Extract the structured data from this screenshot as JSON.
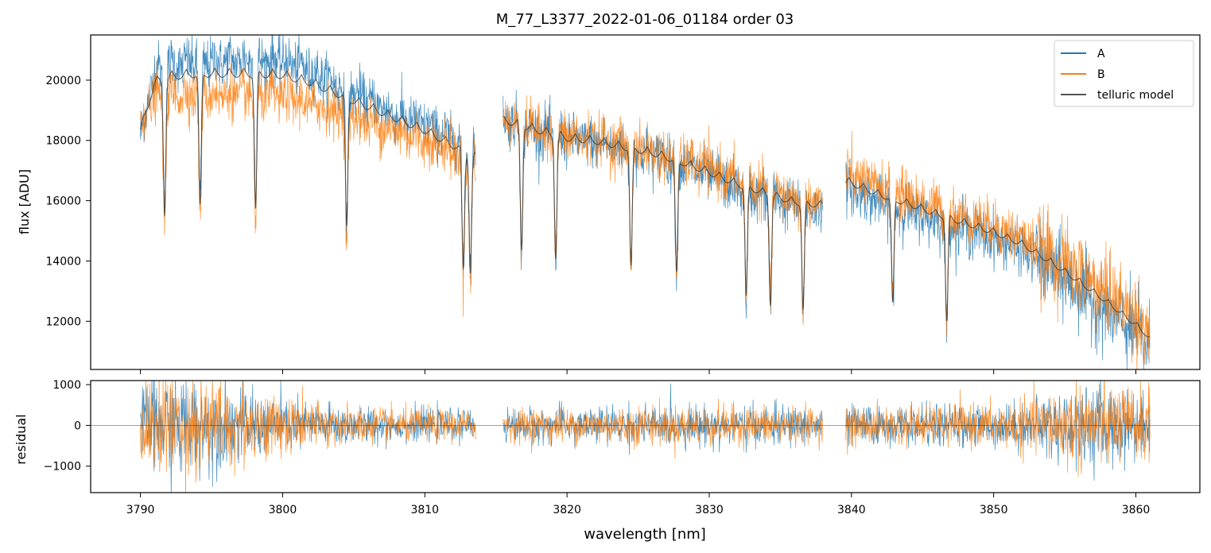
{
  "chart_data": [
    {
      "type": "line",
      "title": "M_77_L3377_2022-01-06_01184  order 03",
      "xlabel": "",
      "ylabel": "flux [ADU]",
      "xlim": [
        3786.5,
        3864.5
      ],
      "ylim": [
        10400,
        21500
      ],
      "yticks": [
        12000,
        14000,
        16000,
        18000,
        20000
      ],
      "grid": false,
      "legend": "top-right",
      "segments": [
        [
          3790.0,
          3813.6
        ],
        [
          3815.5,
          3838.0
        ],
        [
          3839.6,
          3861.0
        ]
      ],
      "series": [
        {
          "name": "A",
          "color": "#1f77b4",
          "x": [
            3790,
            3791,
            3792,
            3794,
            3796,
            3798,
            3800,
            3802,
            3804,
            3806,
            3808,
            3810,
            3812,
            3813.5,
            3815.6,
            3818,
            3820,
            3822,
            3824,
            3826,
            3828,
            3830,
            3832,
            3834,
            3836,
            3837.9,
            3839.7,
            3842,
            3844,
            3846,
            3848,
            3850,
            3852,
            3854,
            3856,
            3858,
            3860,
            3861
          ],
          "values": [
            18300,
            20500,
            20700,
            20800,
            20850,
            20900,
            20850,
            20500,
            20000,
            19500,
            19000,
            18700,
            18200,
            17800,
            18900,
            18500,
            18200,
            18100,
            17900,
            17700,
            17400,
            17000,
            16600,
            16300,
            16000,
            15900,
            16600,
            16100,
            15800,
            15500,
            15200,
            14900,
            14500,
            13900,
            13200,
            12500,
            11700,
            11300
          ]
        },
        {
          "name": "B",
          "color": "#ff7f0e",
          "x": [
            3790,
            3791,
            3792,
            3794,
            3796,
            3798,
            3800,
            3802,
            3804,
            3806,
            3808,
            3810,
            3812,
            3813.5,
            3815.6,
            3818,
            3820,
            3822,
            3824,
            3826,
            3828,
            3830,
            3832,
            3834,
            3836,
            3837.9,
            3839.7,
            3842,
            3844,
            3846,
            3848,
            3850,
            3852,
            3854,
            3856,
            3858,
            3860,
            3861
          ],
          "values": [
            18800,
            19600,
            19700,
            19750,
            19700,
            19700,
            19650,
            19400,
            19100,
            18800,
            18500,
            18200,
            17800,
            17400,
            18800,
            18500,
            18300,
            18200,
            18000,
            17800,
            17500,
            17200,
            16800,
            16500,
            16200,
            16100,
            17000,
            16600,
            16300,
            15900,
            15600,
            15300,
            14900,
            14300,
            13700,
            13000,
            12300,
            11800
          ]
        },
        {
          "name": "telluric model",
          "color": "#333333",
          "x": [
            3790,
            3791,
            3792,
            3794,
            3796,
            3798,
            3800,
            3802,
            3804,
            3806,
            3808,
            3810,
            3812,
            3813.5,
            3815.6,
            3818,
            3820,
            3822,
            3824,
            3826,
            3828,
            3830,
            3832,
            3834,
            3836,
            3837.9,
            3839.7,
            3842,
            3844,
            3846,
            3848,
            3850,
            3852,
            3854,
            3856,
            3858,
            3860,
            3861
          ],
          "values": [
            18500,
            20100,
            20300,
            20400,
            20400,
            20400,
            20350,
            20100,
            19700,
            19300,
            18900,
            18500,
            18000,
            17600,
            18850,
            18500,
            18250,
            18150,
            17950,
            17750,
            17450,
            17100,
            16700,
            16400,
            16100,
            16000,
            16800,
            16350,
            16050,
            15700,
            15400,
            15100,
            14700,
            14100,
            13450,
            12750,
            12000,
            11550
          ]
        }
      ],
      "absorption_lines_nm": [
        3791.7,
        3794.2,
        3798.1,
        3804.5,
        3812.7,
        3813.2,
        3816.8,
        3819.2,
        3824.5,
        3827.7,
        3832.6,
        3834.3,
        3836.6,
        3842.9,
        3846.7
      ]
    },
    {
      "type": "line",
      "title": "",
      "xlabel": "wavelength [nm]",
      "ylabel": "residual",
      "xlim": [
        3786.5,
        3864.5
      ],
      "ylim": [
        -1650,
        1100
      ],
      "yticks": [
        -1000,
        0,
        1000
      ],
      "xticks": [
        3790,
        3800,
        3810,
        3820,
        3830,
        3840,
        3850,
        3860
      ],
      "hline": 0,
      "series": [
        {
          "name": "A",
          "color": "#1f77b4",
          "noise_amplitude_by_x": {
            "x": [
              3790,
              3792,
              3795,
              3798,
              3802,
              3806,
              3810,
              3813.5,
              3815.6,
              3820,
              3825,
              3830,
              3835,
              3838,
              3839.7,
              3845,
              3850,
              3853,
              3856,
              3858,
              3861
            ],
            "values": [
              1200,
              1600,
              1400,
              1000,
              700,
              550,
              500,
              450,
              500,
              550,
              600,
              600,
              600,
              550,
              600,
              600,
              650,
              800,
              1300,
              1200,
              1000
            ]
          }
        },
        {
          "name": "B",
          "color": "#ff7f0e",
          "noise_amplitude_by_x": {
            "x": [
              3790,
              3792,
              3795,
              3798,
              3802,
              3806,
              3810,
              3813.5,
              3815.6,
              3820,
              3825,
              3830,
              3835,
              3838,
              3839.7,
              3845,
              3850,
              3853,
              3856,
              3858,
              3861
            ],
            "values": [
              1300,
              1800,
              1500,
              1100,
              750,
              550,
              500,
              450,
              500,
              550,
              600,
              600,
              600,
              550,
              600,
              600,
              650,
              850,
              1400,
              1300,
              1100
            ]
          }
        }
      ]
    }
  ]
}
